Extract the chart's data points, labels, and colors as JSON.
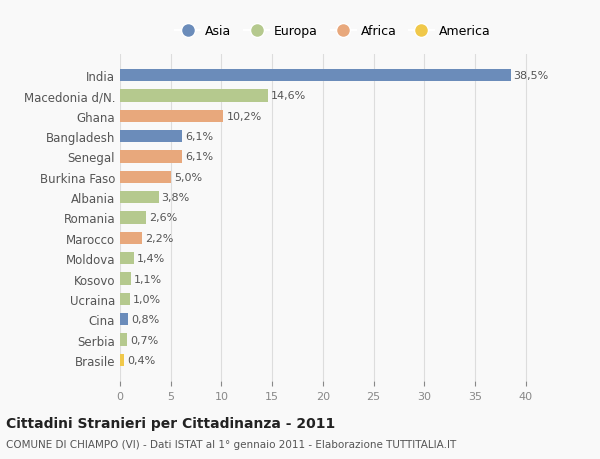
{
  "countries": [
    "India",
    "Macedonia d/N.",
    "Ghana",
    "Bangladesh",
    "Senegal",
    "Burkina Faso",
    "Albania",
    "Romania",
    "Marocco",
    "Moldova",
    "Kosovo",
    "Ucraina",
    "Cina",
    "Serbia",
    "Brasile"
  ],
  "values": [
    38.5,
    14.6,
    10.2,
    6.1,
    6.1,
    5.0,
    3.8,
    2.6,
    2.2,
    1.4,
    1.1,
    1.0,
    0.8,
    0.7,
    0.4
  ],
  "labels": [
    "38,5%",
    "14,6%",
    "10,2%",
    "6,1%",
    "6,1%",
    "5,0%",
    "3,8%",
    "2,6%",
    "2,2%",
    "1,4%",
    "1,1%",
    "1,0%",
    "0,8%",
    "0,7%",
    "0,4%"
  ],
  "colors": [
    "#6b8cba",
    "#b5c98e",
    "#e8a87c",
    "#6b8cba",
    "#e8a87c",
    "#e8a87c",
    "#b5c98e",
    "#b5c98e",
    "#e8a87c",
    "#b5c98e",
    "#b5c98e",
    "#b5c98e",
    "#6b8cba",
    "#b5c98e",
    "#f0c84a"
  ],
  "continent": [
    "Asia",
    "Europa",
    "Africa",
    "Asia",
    "Africa",
    "Africa",
    "Europa",
    "Europa",
    "Africa",
    "Europa",
    "Europa",
    "Europa",
    "Asia",
    "Europa",
    "America"
  ],
  "legend_labels": [
    "Asia",
    "Europa",
    "Africa",
    "America"
  ],
  "legend_colors": [
    "#6b8cba",
    "#b5c98e",
    "#e8a87c",
    "#f0c84a"
  ],
  "title": "Cittadini Stranieri per Cittadinanza - 2011",
  "subtitle": "COMUNE DI CHIAMPO (VI) - Dati ISTAT al 1° gennaio 2011 - Elaborazione TUTTITALIA.IT",
  "xlim": [
    0,
    42
  ],
  "xticks": [
    0,
    5,
    10,
    15,
    20,
    25,
    30,
    35,
    40
  ],
  "background_color": "#f9f9f9",
  "grid_color": "#dddddd",
  "bar_height": 0.6
}
